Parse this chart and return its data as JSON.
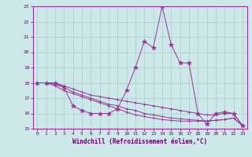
{
  "xlabel": "Windchill (Refroidissement éolien,°C)",
  "bg_color": "#cce8e8",
  "line_color": "#993399",
  "grid_color": "#aacccc",
  "xlim": [
    -0.5,
    23.5
  ],
  "ylim": [
    15,
    23
  ],
  "yticks": [
    15,
    16,
    17,
    18,
    19,
    20,
    21,
    22,
    23
  ],
  "xticks": [
    0,
    1,
    2,
    3,
    4,
    5,
    6,
    7,
    8,
    9,
    10,
    11,
    12,
    13,
    14,
    15,
    16,
    17,
    18,
    19,
    20,
    21,
    22,
    23
  ],
  "lines": [
    {
      "x": [
        0,
        1,
        2,
        3,
        4,
        5,
        6,
        7,
        8,
        9,
        10,
        11,
        12,
        13,
        14,
        15,
        16,
        17,
        18,
        19,
        20,
        21,
        22,
        23
      ],
      "y": [
        18,
        18,
        18,
        17.7,
        16.5,
        16.2,
        16.0,
        16.0,
        16.0,
        16.3,
        17.5,
        19.0,
        20.7,
        20.3,
        23.0,
        20.5,
        19.3,
        19.3,
        16.0,
        15.3,
        16.0,
        16.1,
        16.0,
        15.2
      ],
      "marker": "*",
      "ms": 4
    },
    {
      "x": [
        0,
        1,
        2,
        3,
        4,
        5,
        6,
        7,
        8,
        9,
        10,
        11,
        12,
        13,
        14,
        15,
        16,
        17,
        18,
        19,
        20,
        21,
        22,
        23
      ],
      "y": [
        18,
        18,
        17.8,
        17.5,
        17.3,
        17.1,
        16.9,
        16.7,
        16.5,
        16.3,
        16.1,
        15.9,
        15.8,
        15.7,
        15.6,
        15.55,
        15.5,
        15.5,
        15.5,
        15.5,
        15.55,
        15.6,
        15.7,
        15.2
      ],
      "marker": "+",
      "ms": 3
    },
    {
      "x": [
        0,
        1,
        2,
        3,
        4,
        5,
        6,
        7,
        8,
        9,
        10,
        11,
        12,
        13,
        14,
        15,
        16,
        17,
        18,
        19,
        20,
        21,
        22,
        23
      ],
      "y": [
        18,
        18,
        17.9,
        17.7,
        17.4,
        17.2,
        17.0,
        16.8,
        16.6,
        16.5,
        16.3,
        16.2,
        16.0,
        15.9,
        15.8,
        15.7,
        15.65,
        15.6,
        15.55,
        15.5,
        15.55,
        15.6,
        15.7,
        15.2
      ],
      "marker": "+",
      "ms": 3
    },
    {
      "x": [
        0,
        1,
        2,
        3,
        4,
        5,
        6,
        7,
        8,
        9,
        10,
        11,
        12,
        13,
        14,
        15,
        16,
        17,
        18,
        19,
        20,
        21,
        22,
        23
      ],
      "y": [
        18,
        18,
        18.0,
        17.8,
        17.6,
        17.4,
        17.2,
        17.1,
        17.0,
        16.9,
        16.8,
        16.7,
        16.6,
        16.5,
        16.4,
        16.3,
        16.2,
        16.1,
        16.0,
        15.9,
        15.9,
        16.0,
        16.0,
        15.2
      ],
      "marker": "+",
      "ms": 3
    }
  ]
}
